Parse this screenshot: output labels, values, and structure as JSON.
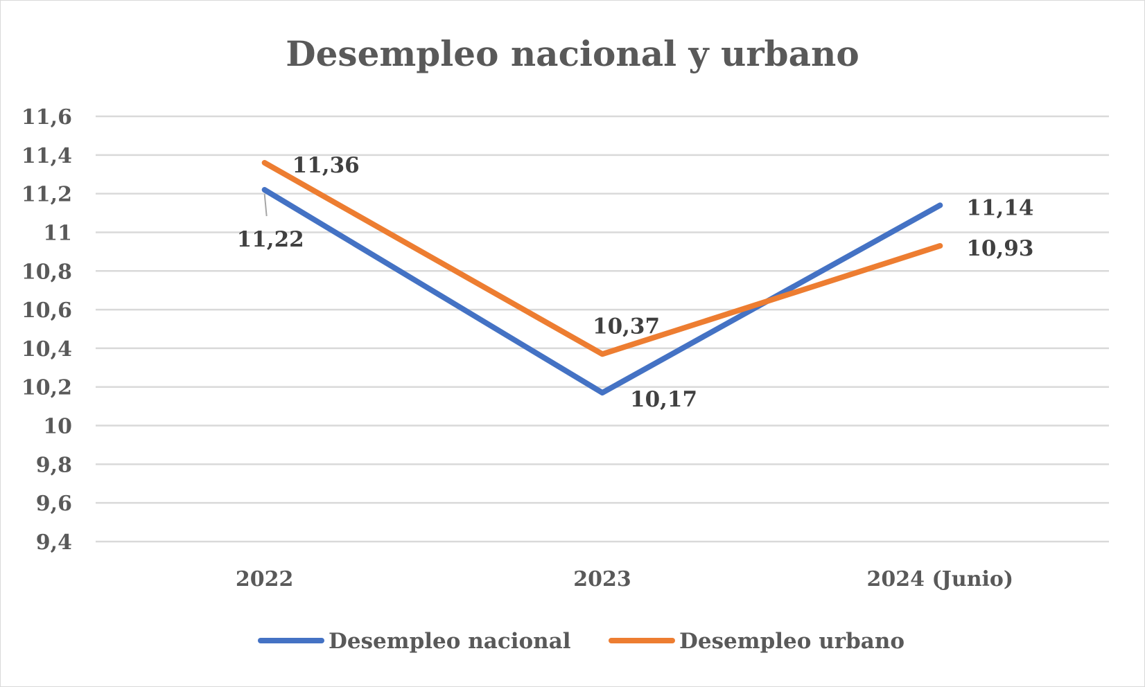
{
  "chart_data": {
    "type": "line",
    "title": "Desempleo nacional y urbano",
    "categories": [
      "2022",
      "2023",
      "2024 (Junio)"
    ],
    "series": [
      {
        "name": "Desempleo nacional",
        "values": [
          11.22,
          10.17,
          11.14
        ],
        "labels": [
          "11,22",
          "10,17",
          "11,14"
        ],
        "color": "#4472C4"
      },
      {
        "name": "Desempleo urbano",
        "values": [
          11.36,
          10.37,
          10.93
        ],
        "labels": [
          "11,36",
          "10,37",
          "10,93"
        ],
        "color": "#ED7D31"
      }
    ],
    "y_ticks": [
      {
        "value": 9.4,
        "label": "9,4"
      },
      {
        "value": 9.6,
        "label": "9,6"
      },
      {
        "value": 9.8,
        "label": "9,8"
      },
      {
        "value": 10.0,
        "label": "10"
      },
      {
        "value": 10.2,
        "label": "10,2"
      },
      {
        "value": 10.4,
        "label": "10,4"
      },
      {
        "value": 10.6,
        "label": "10,6"
      },
      {
        "value": 10.8,
        "label": "10,8"
      },
      {
        "value": 11.0,
        "label": "11"
      },
      {
        "value": 11.2,
        "label": "11,2"
      },
      {
        "value": 11.4,
        "label": "11,4"
      },
      {
        "value": 11.6,
        "label": "11,6"
      }
    ],
    "ylim": [
      9.4,
      11.6
    ],
    "grid": true,
    "legend_position": "bottom",
    "gridline_color": "#d9d9d9"
  }
}
